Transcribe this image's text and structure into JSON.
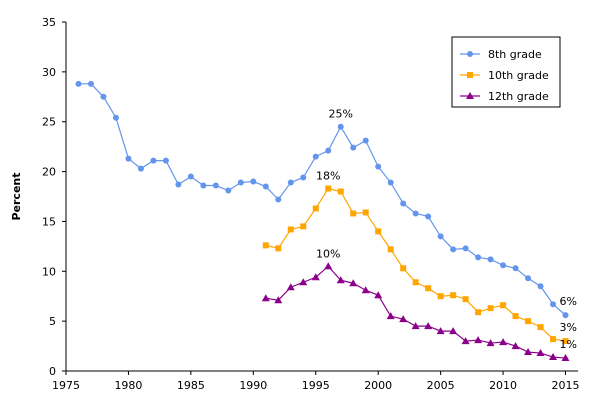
{
  "chart_data": {
    "type": "line",
    "title": "",
    "xlabel": "",
    "ylabel": "Percent",
    "xlim": [
      1975,
      2016
    ],
    "ylim": [
      0,
      35
    ],
    "xticks": [
      1975,
      1980,
      1985,
      1990,
      1995,
      2000,
      2005,
      2010,
      2015
    ],
    "yticks": [
      0,
      5,
      10,
      15,
      20,
      25,
      30,
      35
    ],
    "grid": false,
    "legend_position": "top-right",
    "series": [
      {
        "name": "8th grade",
        "color": "#6495ed",
        "marker": "circle",
        "x": [
          1976,
          1977,
          1978,
          1979,
          1980,
          1981,
          1982,
          1983,
          1984,
          1985,
          1986,
          1987,
          1988,
          1989,
          1990,
          1991,
          1992,
          1993,
          1994,
          1995,
          1996,
          1997,
          1998,
          1999,
          2000,
          2001,
          2002,
          2003,
          2004,
          2005,
          2006,
          2007,
          2008,
          2009,
          2010,
          2011,
          2012,
          2013,
          2014,
          2015
        ],
        "y": [
          28.8,
          28.8,
          27.5,
          25.4,
          21.3,
          20.3,
          21.1,
          21.1,
          18.7,
          19.5,
          18.6,
          18.6,
          18.1,
          18.9,
          19.0,
          18.5,
          17.2,
          18.9,
          19.4,
          21.5,
          22.1,
          24.5,
          22.4,
          23.1,
          20.5,
          18.9,
          16.8,
          15.8,
          15.5,
          13.5,
          12.2,
          12.3,
          11.4,
          11.2,
          10.6,
          10.3,
          9.3,
          8.5,
          6.7,
          5.6
        ]
      },
      {
        "name": "10th grade",
        "color": "#ffa500",
        "marker": "square",
        "x": [
          1991,
          1992,
          1993,
          1994,
          1995,
          1996,
          1997,
          1998,
          1999,
          2000,
          2001,
          2002,
          2003,
          2004,
          2005,
          2006,
          2007,
          2008,
          2009,
          2010,
          2011,
          2012,
          2013,
          2014,
          2015
        ],
        "y": [
          12.6,
          12.3,
          14.2,
          14.5,
          16.3,
          18.3,
          18.0,
          15.8,
          15.9,
          14.0,
          12.2,
          10.3,
          8.9,
          8.3,
          7.5,
          7.6,
          7.2,
          5.9,
          6.3,
          6.6,
          5.5,
          5.0,
          4.4,
          3.2,
          3.0
        ]
      },
      {
        "name": "12th grade",
        "color": "#8b008b",
        "marker": "triangle",
        "x": [
          1991,
          1992,
          1993,
          1994,
          1995,
          1996,
          1997,
          1998,
          1999,
          2000,
          2001,
          2002,
          2003,
          2004,
          2005,
          2006,
          2007,
          2008,
          2009,
          2010,
          2011,
          2012,
          2013,
          2014,
          2015
        ],
        "y": [
          7.3,
          7.1,
          8.4,
          8.9,
          9.4,
          10.5,
          9.1,
          8.8,
          8.1,
          7.6,
          5.5,
          5.2,
          4.5,
          4.5,
          4.0,
          4.0,
          3.0,
          3.1,
          2.8,
          2.9,
          2.5,
          1.9,
          1.8,
          1.4,
          1.3
        ]
      }
    ],
    "annotations": [
      {
        "text": "25%",
        "x": 1997,
        "y": 24.5,
        "series": 0
      },
      {
        "text": "18%",
        "x": 1996,
        "y": 18.3,
        "series": 1
      },
      {
        "text": "10%",
        "x": 1996,
        "y": 10.5,
        "series": 2
      },
      {
        "text": "6%",
        "x": 2015,
        "y": 5.6,
        "series": 0
      },
      {
        "text": "3%",
        "x": 2015,
        "y": 3.0,
        "series": 1
      },
      {
        "text": "1%",
        "x": 2015,
        "y": 1.3,
        "series": 2
      }
    ]
  }
}
